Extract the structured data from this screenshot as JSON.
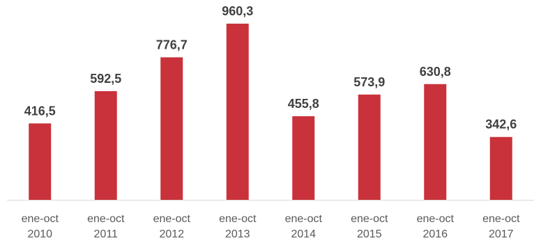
{
  "chart_data": {
    "type": "bar",
    "categories": [
      [
        "ene-oct",
        "2010"
      ],
      [
        "ene-oct",
        "2011"
      ],
      [
        "ene-oct",
        "2012"
      ],
      [
        "ene-oct",
        "2013"
      ],
      [
        "ene-oct",
        "2014"
      ],
      [
        "ene-oct",
        "2015"
      ],
      [
        "ene-oct",
        "2016"
      ],
      [
        "ene-oct",
        "2017"
      ]
    ],
    "values": [
      416.5,
      592.5,
      776.7,
      960.3,
      455.8,
      573.9,
      630.8,
      342.6
    ],
    "data_labels": [
      "416,5",
      "592,5",
      "776,7",
      "960,3",
      "455,8",
      "573,9",
      "630,8",
      "342,6"
    ],
    "title": "",
    "xlabel": "",
    "ylabel": "",
    "ylim": [
      0,
      1000
    ],
    "grid": false,
    "legend": "none",
    "bar_color": "#c9323a"
  }
}
